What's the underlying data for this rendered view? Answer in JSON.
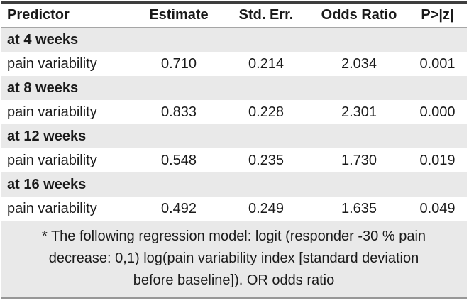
{
  "table": {
    "columns": [
      {
        "id": "predictor",
        "label": "Predictor"
      },
      {
        "id": "estimate",
        "label": "Estimate"
      },
      {
        "id": "std_err",
        "label": "Std. Err."
      },
      {
        "id": "odds_ratio",
        "label": "Odds Ratio"
      },
      {
        "id": "p_value",
        "label": "P>|z|"
      }
    ],
    "groups": [
      {
        "label": "at 4 weeks",
        "row": {
          "predictor": "pain variability",
          "estimate": "0.710",
          "std_err": "0.214",
          "odds_ratio": "2.034",
          "p_value": "0.001"
        }
      },
      {
        "label": "at 8 weeks",
        "row": {
          "predictor": "pain variability",
          "estimate": "0.833",
          "std_err": "0.228",
          "odds_ratio": "2.301",
          "p_value": "0.000"
        }
      },
      {
        "label": "at 12 weeks",
        "row": {
          "predictor": "pain variability",
          "estimate": "0.548",
          "std_err": "0.235",
          "odds_ratio": "1.730",
          "p_value": "0.019"
        }
      },
      {
        "label": "at 16 weeks",
        "row": {
          "predictor": "pain variability",
          "estimate": "0.492",
          "std_err": "0.249",
          "odds_ratio": "1.635",
          "p_value": "0.049"
        }
      }
    ],
    "footnote": {
      "lines": [
        "* The following regression model: logit (responder -30 % pain",
        "decrease: 0,1) log(pain variability index [standard deviation",
        "before baseline]). OR odds ratio"
      ],
      "full_text": "* The following regression model: logit (responder -30 % pain decrease: 0,1) log(pain variability index [standard deviation before baseline]). OR odds ratio"
    }
  },
  "colors": {
    "top_border": "#3e3e3e",
    "bottom_border": "#979797",
    "header_underline": "#a6a6a6",
    "band_gray": "#e9e9e9",
    "text": "#1a1a1a",
    "row_white": "#ffffff"
  }
}
